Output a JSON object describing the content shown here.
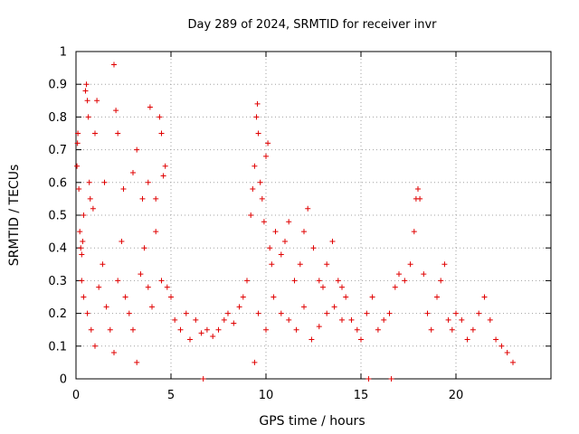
{
  "chart_data": {
    "type": "scatter",
    "title": "Day 289 of 2024, SRMTID for receiver invr",
    "xlabel": "GPS time / hours",
    "ylabel": "SRMTID / TECUs",
    "xlim": [
      0,
      25
    ],
    "ylim": [
      0,
      1
    ],
    "xticks": [
      0,
      5,
      10,
      15,
      20
    ],
    "xtick_labels": [
      "0",
      "5",
      "10",
      "15",
      "20"
    ],
    "yticks": [
      0,
      0.1,
      0.2,
      0.3,
      0.4,
      0.5,
      0.6,
      0.7,
      0.8,
      0.9,
      1
    ],
    "ytick_labels": [
      "0",
      "0.1",
      "0.2",
      "0.3",
      "0.4",
      "0.5",
      "0.6",
      "0.7",
      "0.8",
      "0.9",
      "1"
    ],
    "grid": true,
    "marker": "plus",
    "color": "#e00000",
    "series": [
      {
        "name": "SRMTID",
        "points": [
          [
            0.05,
            0.65
          ],
          [
            0.08,
            0.72
          ],
          [
            0.1,
            0.75
          ],
          [
            0.15,
            0.58
          ],
          [
            0.2,
            0.45
          ],
          [
            0.25,
            0.4
          ],
          [
            0.3,
            0.38
          ],
          [
            0.35,
            0.42
          ],
          [
            0.4,
            0.5
          ],
          [
            0.5,
            0.88
          ],
          [
            0.55,
            0.9
          ],
          [
            0.6,
            0.85
          ],
          [
            0.65,
            0.8
          ],
          [
            0.7,
            0.6
          ],
          [
            0.75,
            0.55
          ],
          [
            0.9,
            0.52
          ],
          [
            1.0,
            0.75
          ],
          [
            1.1,
            0.85
          ],
          [
            1.5,
            0.6
          ],
          [
            2.0,
            0.96
          ],
          [
            2.1,
            0.82
          ],
          [
            2.2,
            0.75
          ],
          [
            2.5,
            0.58
          ],
          [
            3.0,
            0.63
          ],
          [
            3.2,
            0.7
          ],
          [
            3.5,
            0.55
          ],
          [
            3.8,
            0.6
          ],
          [
            3.9,
            0.83
          ],
          [
            4.2,
            0.55
          ],
          [
            4.4,
            0.8
          ],
          [
            4.5,
            0.75
          ],
          [
            4.6,
            0.62
          ],
          [
            4.7,
            0.65
          ],
          [
            0.3,
            0.3
          ],
          [
            0.4,
            0.25
          ],
          [
            0.6,
            0.2
          ],
          [
            0.8,
            0.15
          ],
          [
            1.0,
            0.1
          ],
          [
            1.2,
            0.28
          ],
          [
            1.4,
            0.35
          ],
          [
            1.6,
            0.22
          ],
          [
            1.8,
            0.15
          ],
          [
            2.0,
            0.08
          ],
          [
            2.2,
            0.3
          ],
          [
            2.4,
            0.42
          ],
          [
            2.6,
            0.25
          ],
          [
            2.8,
            0.2
          ],
          [
            3.0,
            0.15
          ],
          [
            3.2,
            0.05
          ],
          [
            3.4,
            0.32
          ],
          [
            3.6,
            0.4
          ],
          [
            3.8,
            0.28
          ],
          [
            4.0,
            0.22
          ],
          [
            4.2,
            0.45
          ],
          [
            4.5,
            0.3
          ],
          [
            4.8,
            0.28
          ],
          [
            5.0,
            0.25
          ],
          [
            5.2,
            0.18
          ],
          [
            5.5,
            0.15
          ],
          [
            5.8,
            0.2
          ],
          [
            6.0,
            0.12
          ],
          [
            6.3,
            0.18
          ],
          [
            6.6,
            0.14
          ],
          [
            6.9,
            0.15
          ],
          [
            7.2,
            0.13
          ],
          [
            7.5,
            0.15
          ],
          [
            7.8,
            0.18
          ],
          [
            8.0,
            0.2
          ],
          [
            8.3,
            0.17
          ],
          [
            8.6,
            0.22
          ],
          [
            8.8,
            0.25
          ],
          [
            9.0,
            0.3
          ],
          [
            9.2,
            0.5
          ],
          [
            9.3,
            0.58
          ],
          [
            9.4,
            0.65
          ],
          [
            9.5,
            0.8
          ],
          [
            9.55,
            0.84
          ],
          [
            9.6,
            0.75
          ],
          [
            9.7,
            0.6
          ],
          [
            9.8,
            0.55
          ],
          [
            9.9,
            0.48
          ],
          [
            10.0,
            0.68
          ],
          [
            10.1,
            0.72
          ],
          [
            10.2,
            0.4
          ],
          [
            10.3,
            0.35
          ],
          [
            10.5,
            0.45
          ],
          [
            10.8,
            0.38
          ],
          [
            11.0,
            0.42
          ],
          [
            11.2,
            0.48
          ],
          [
            11.5,
            0.3
          ],
          [
            11.8,
            0.35
          ],
          [
            12.0,
            0.45
          ],
          [
            12.2,
            0.52
          ],
          [
            12.5,
            0.4
          ],
          [
            12.8,
            0.3
          ],
          [
            13.0,
            0.28
          ],
          [
            13.2,
            0.35
          ],
          [
            13.5,
            0.42
          ],
          [
            13.8,
            0.3
          ],
          [
            14.0,
            0.28
          ],
          [
            9.4,
            0.05
          ],
          [
            9.6,
            0.2
          ],
          [
            10.0,
            0.15
          ],
          [
            10.4,
            0.25
          ],
          [
            10.8,
            0.2
          ],
          [
            11.2,
            0.18
          ],
          [
            11.6,
            0.15
          ],
          [
            12.0,
            0.22
          ],
          [
            12.4,
            0.12
          ],
          [
            12.8,
            0.16
          ],
          [
            13.2,
            0.2
          ],
          [
            13.6,
            0.22
          ],
          [
            14.0,
            0.18
          ],
          [
            14.2,
            0.25
          ],
          [
            14.5,
            0.18
          ],
          [
            14.8,
            0.15
          ],
          [
            15.0,
            0.12
          ],
          [
            15.3,
            0.2
          ],
          [
            15.6,
            0.25
          ],
          [
            15.9,
            0.15
          ],
          [
            16.2,
            0.18
          ],
          [
            16.5,
            0.2
          ],
          [
            16.8,
            0.28
          ],
          [
            17.0,
            0.32
          ],
          [
            17.3,
            0.3
          ],
          [
            17.6,
            0.35
          ],
          [
            17.8,
            0.45
          ],
          [
            17.9,
            0.55
          ],
          [
            18.0,
            0.58
          ],
          [
            18.1,
            0.55
          ],
          [
            18.3,
            0.32
          ],
          [
            18.5,
            0.2
          ],
          [
            18.7,
            0.15
          ],
          [
            19.0,
            0.25
          ],
          [
            19.2,
            0.3
          ],
          [
            19.4,
            0.35
          ],
          [
            19.6,
            0.18
          ],
          [
            19.8,
            0.15
          ],
          [
            20.0,
            0.2
          ],
          [
            20.3,
            0.18
          ],
          [
            20.6,
            0.12
          ],
          [
            20.9,
            0.15
          ],
          [
            21.2,
            0.2
          ],
          [
            21.5,
            0.25
          ],
          [
            21.8,
            0.18
          ],
          [
            22.1,
            0.12
          ],
          [
            22.4,
            0.1
          ],
          [
            22.7,
            0.08
          ],
          [
            23.0,
            0.05
          ],
          [
            6.7,
            0.0
          ],
          [
            16.6,
            0.0
          ],
          [
            15.4,
            0.0
          ]
        ]
      }
    ]
  }
}
